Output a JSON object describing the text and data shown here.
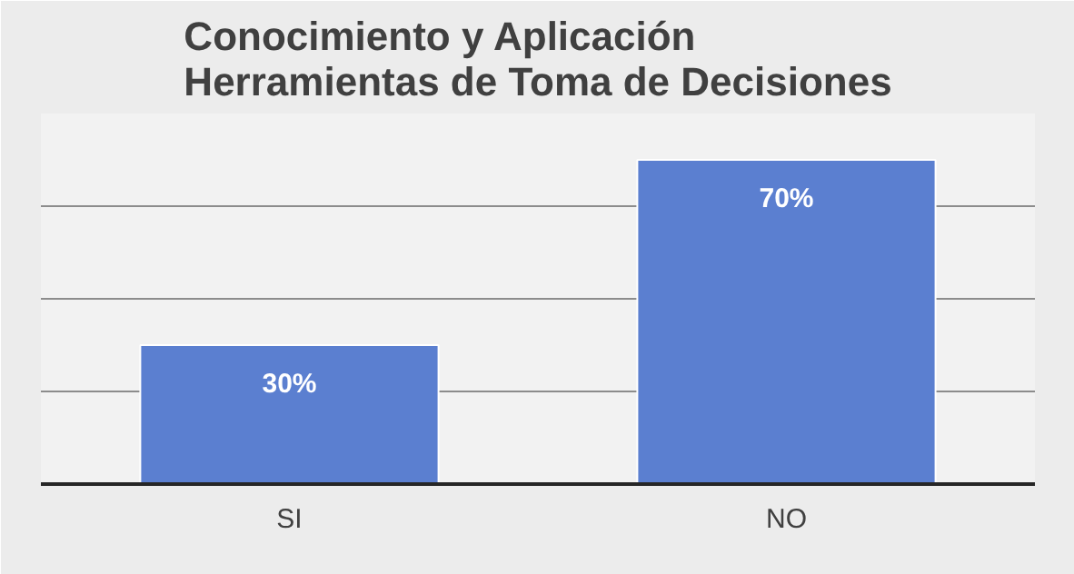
{
  "chart_data": {
    "type": "bar",
    "title": "Conocimiento y Aplicación\nHerramientas de Toma de Decisiones",
    "categories": [
      "SI",
      "NO"
    ],
    "values": [
      30,
      70
    ],
    "color": "#5b7fd0",
    "data_labels": true,
    "value_labels": [
      "30%",
      "70%"
    ],
    "ylim": [
      0,
      80
    ],
    "yticks": [
      {
        "value": 0,
        "label": null
      },
      {
        "value": 20,
        "label": null
      },
      {
        "value": 40,
        "label": null
      },
      {
        "value": 60,
        "label": null
      },
      {
        "value": 80,
        "label": null
      }
    ],
    "grid": "y",
    "tick_labels": "x"
  }
}
